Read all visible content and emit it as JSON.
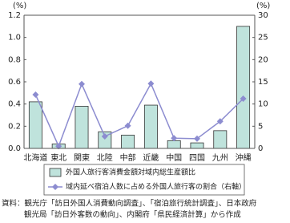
{
  "chart_data": {
    "type": "bar_line",
    "y_unit": "(%)",
    "y2_unit": "(%)",
    "categories": [
      "北海道",
      "東北",
      "関東",
      "北陸",
      "中部",
      "近畿",
      "中国",
      "四国",
      "九州",
      "沖縄"
    ],
    "series": [
      {
        "name": "外国人旅行客消費金額対域内総生産額比",
        "type": "bar",
        "color": "#bfe3dc",
        "values": [
          0.42,
          0.04,
          0.38,
          0.15,
          0.12,
          0.39,
          0.07,
          0.05,
          0.16,
          1.1
        ]
      },
      {
        "name": "域内延べ宿泊人数に占める外国人旅行客の割合（右軸）",
        "type": "line",
        "axis": "y2",
        "color": "#8c8cd0",
        "values": [
          12.1,
          0.5,
          14.5,
          2.7,
          5.1,
          14.6,
          2.3,
          2.2,
          6.1,
          11.2
        ]
      }
    ],
    "ylim": [
      0,
      1.2
    ],
    "yticks": [
      {
        "value": 0,
        "label": "0.0"
      },
      {
        "value": 0.2,
        "label": "0.2"
      },
      {
        "value": 0.4,
        "label": "0.4"
      },
      {
        "value": 0.6,
        "label": "0.6"
      },
      {
        "value": 0.8,
        "label": "0.8"
      },
      {
        "value": 1.0,
        "label": "1.0"
      },
      {
        "value": 1.2,
        "label": "1.2"
      }
    ],
    "y2lim": [
      0,
      30
    ],
    "y2ticks": [
      0,
      5,
      10,
      15,
      20,
      25,
      30
    ],
    "source": [
      "資料：観光庁「訪日外国人消費動向調査」、「宿泊旅行統計調査」、日本政府",
      "観光局「訪日外客数の動向」、内閣府「県民経済計算」から作成"
    ]
  }
}
